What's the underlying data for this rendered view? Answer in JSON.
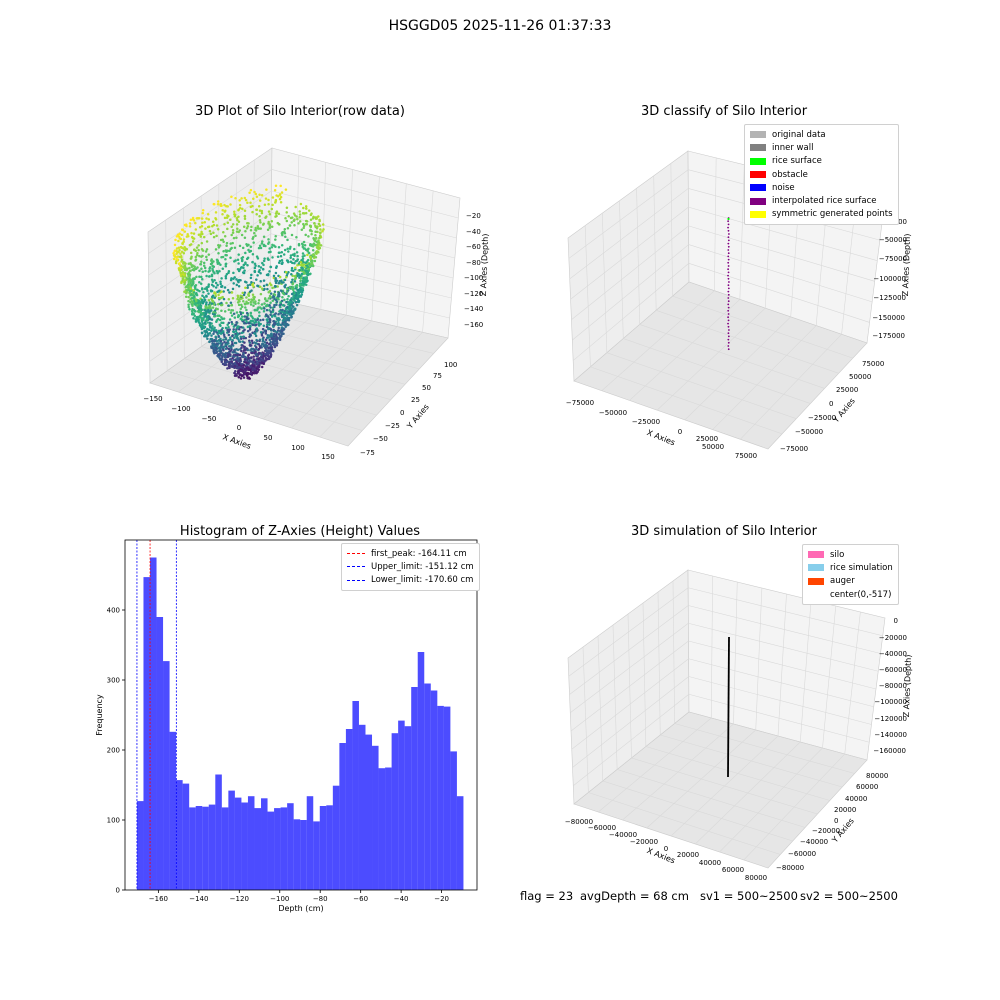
{
  "title": "HSGGD05 2025-11-26 01:37:33",
  "footer": {
    "flag": "flag = 23",
    "avg_depth": "avgDepth = 68 cm",
    "sv1": "sv1 = 500~2500",
    "sv2": "sv2 = 500~2500"
  },
  "chart_data": [
    {
      "type": "scatter",
      "subtype": "3d",
      "title": "3D Plot of Silo Interior(row data)",
      "xlabel": "X Axies",
      "ylabel": "Y Axies",
      "zlabel": "Z Axies (Depth)",
      "x_ticks": [
        "−150",
        "−100",
        "−50",
        "0",
        "50",
        "100",
        "150"
      ],
      "y_ticks": [
        "−75",
        "−50",
        "−25",
        "0",
        "25",
        "50",
        "75",
        "100"
      ],
      "z_ticks": [
        "−20",
        "−40",
        "−60",
        "−80",
        "−100",
        "−120",
        "−140",
        "−160"
      ],
      "xlim": [
        -150,
        150
      ],
      "ylim": [
        -75,
        110
      ],
      "zlim": [
        -175,
        -10
      ],
      "colormap": "viridis"
    },
    {
      "type": "scatter",
      "subtype": "3d",
      "title": "3D classify of Silo Interior",
      "xlabel": "X Axies",
      "ylabel": "Y Axies",
      "zlabel": "Z Axies (Depth)",
      "x_ticks": [
        "−75000",
        "−50000",
        "−25000",
        "0",
        "25000",
        "50000",
        "75000"
      ],
      "y_ticks": [
        "−75000",
        "−50000",
        "−25000",
        "0",
        "25000",
        "50000",
        "75000"
      ],
      "z_ticks": [
        "0",
        "−25000",
        "−50000",
        "−75000",
        "−100000",
        "−125000",
        "−150000",
        "−175000"
      ],
      "legend": [
        {
          "name": "original data",
          "color": "#b3b3b3"
        },
        {
          "name": "inner wall",
          "color": "#808080"
        },
        {
          "name": "rice surface",
          "color": "#00ff00"
        },
        {
          "name": "obstacle",
          "color": "#ff0000"
        },
        {
          "name": "noise",
          "color": "#0000ff"
        },
        {
          "name": "interpolated rice surface",
          "color": "#800080"
        },
        {
          "name": "symmetric generated points",
          "color": "#ffff00"
        }
      ],
      "legend_position": "top-right"
    },
    {
      "type": "bar",
      "subtype": "histogram",
      "title": "Histogram of Z-Axies (Height) Values",
      "xlabel": "Depth (cm)",
      "ylabel": "Frequency",
      "xlim": [
        -176.5,
        -2.5
      ],
      "ylim": [
        0,
        500
      ],
      "x_ticks": [
        -160,
        -140,
        -120,
        -100,
        -80,
        -60,
        -40,
        -20
      ],
      "y_ticks": [
        0,
        100,
        200,
        300,
        400
      ],
      "bin_start": -170.6,
      "bin_width": 3.228,
      "values": [
        127,
        447,
        475,
        390,
        327,
        226,
        157,
        152,
        118,
        120,
        119,
        122,
        165,
        118,
        142,
        132,
        125,
        134,
        117,
        131,
        112,
        117,
        118,
        124,
        101,
        100,
        134,
        98,
        120,
        121,
        149,
        210,
        230,
        270,
        236,
        222,
        206,
        174,
        175,
        224,
        242,
        234,
        290,
        340,
        295,
        285,
        263,
        262,
        198,
        134
      ],
      "bar_color": "#0000ff",
      "bar_opacity": 0.7,
      "vlines": [
        {
          "name": "first_peak: -164.11 cm",
          "x": -164.11,
          "color": "#ff0000"
        },
        {
          "name": "Upper_limit: -151.12 cm",
          "x": -151.12,
          "color": "#0000ff"
        },
        {
          "name": "Lower_limit: -170.60 cm",
          "x": -170.6,
          "color": "#0000ff"
        }
      ],
      "legend_position": "top-right"
    },
    {
      "type": "line",
      "subtype": "3d",
      "title": "3D simulation of Silo Interior",
      "xlabel": "X Axies",
      "ylabel": "Y Axies",
      "zlabel": "Z Axies (Depth)",
      "x_ticks": [
        "−80000",
        "−60000",
        "−40000",
        "−20000",
        "0",
        "20000",
        "40000",
        "60000",
        "80000"
      ],
      "y_ticks": [
        "−80000",
        "−60000",
        "−40000",
        "−20000",
        "0",
        "20000",
        "40000",
        "60000",
        "80000"
      ],
      "z_ticks": [
        "0",
        "−20000",
        "−40000",
        "−60000",
        "−80000",
        "−100000",
        "−120000",
        "−140000",
        "−160000"
      ],
      "legend": [
        {
          "name": "silo",
          "color": "#ff69b4"
        },
        {
          "name": "rice simulation",
          "color": "#87ceeb"
        },
        {
          "name": "auger",
          "color": "#ff4500"
        },
        {
          "name": "center(0,-517)",
          "color": "#ffffff"
        }
      ],
      "legend_position": "top-right"
    }
  ]
}
